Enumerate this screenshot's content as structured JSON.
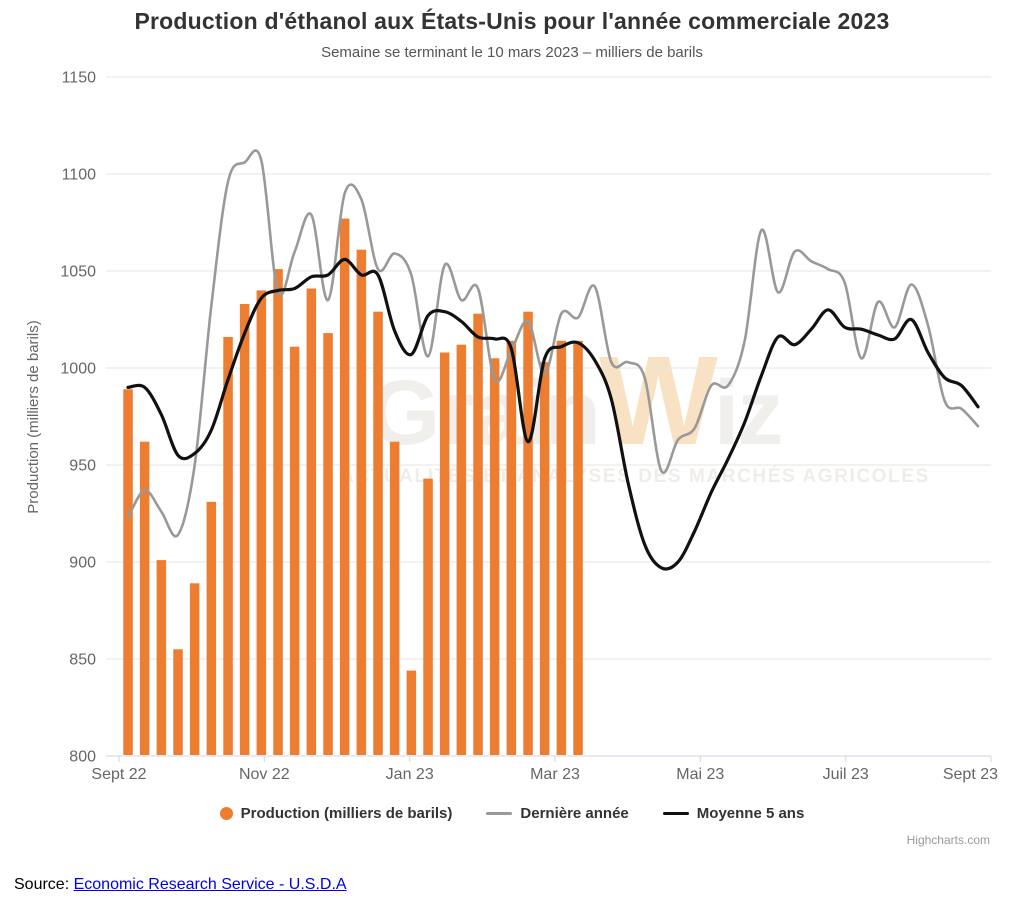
{
  "header": {
    "title": "Production d'éthanol aux États-Unis pour l'année commerciale 2023",
    "subtitle": "Semaine se terminant le 10 mars 2023 – milliers de barils"
  },
  "watermark": {
    "brand_prefix": "Grain",
    "brand_accent": "W",
    "brand_suffix": "iz",
    "tagline": "ACTUALITÉS ET ANALYSES DES MARCHÉS AGRICOLES"
  },
  "legend": {
    "production": "Production (milliers de barils)",
    "last_year": "Dernière année",
    "five_year_avg": "Moyenne 5 ans"
  },
  "credit": "Highcharts.com",
  "source": {
    "label": "Source:",
    "link_text": "Economic Research Service - U.S.D.A"
  },
  "colors": {
    "bar": "#ED7D31",
    "last_year_line": "#999999",
    "five_year_line": "#111111",
    "grid": "#e6e6e6",
    "axis_line": "#ccd6eb",
    "tick_text": "#666666",
    "title_text": "#333333",
    "link": "#0000EE",
    "credit_text": "#999999"
  },
  "chart_data": {
    "type": "combo column + spline",
    "title": "Production d'éthanol aux États-Unis pour l'année commerciale 2023",
    "subtitle": "Semaine se terminant le 10 mars 2023 – milliers de barils",
    "xlabel": "",
    "ylabel": "Production (milliers de barils)",
    "ylim": [
      800,
      1150
    ],
    "y_ticks": [
      800,
      850,
      900,
      950,
      1000,
      1050,
      1100,
      1150
    ],
    "x_tick_labels": [
      "Sept 22",
      "Nov 22",
      "Jan 23",
      "Mar 23",
      "Mai 23",
      "Juil 23",
      "Sept 23"
    ],
    "x_unit": "semaines (sept. 2022 – sept. 2023)",
    "weeks_total": 52,
    "grid": true,
    "legend_position": "bottom",
    "series": [
      {
        "name": "Production (milliers de barils)",
        "type": "column",
        "color": "#ED7D31",
        "values": [
          989,
          962,
          901,
          855,
          889,
          931,
          1016,
          1033,
          1040,
          1051,
          1011,
          1041,
          1018,
          1077,
          1061,
          1029,
          962,
          844,
          943,
          1008,
          1012,
          1028,
          1005,
          1014,
          1029,
          1003,
          1014,
          1014
        ]
      },
      {
        "name": "Dernière année",
        "type": "spline",
        "color": "#999999",
        "values": [
          923,
          937,
          926,
          914,
          950,
          1032,
          1096,
          1106,
          1107,
          1039,
          1060,
          1079,
          1035,
          1090,
          1087,
          1051,
          1059,
          1048,
          1006,
          1053,
          1035,
          1041,
          994,
          1009,
          1024,
          997,
          1028,
          1026,
          1042,
          1003,
          1003,
          995,
          947,
          963,
          969,
          991,
          991,
          1014,
          1071,
          1039,
          1060,
          1055,
          1051,
          1044,
          1005,
          1034,
          1021,
          1043,
          1022,
          983,
          979,
          970
        ]
      },
      {
        "name": "Moyenne 5 ans",
        "type": "spline",
        "color": "#111111",
        "values": [
          990,
          990,
          976,
          955,
          956,
          968,
          994,
          1018,
          1036,
          1040,
          1041,
          1047,
          1048,
          1056,
          1048,
          1048,
          1019,
          1007,
          1027,
          1029,
          1024,
          1016,
          1015,
          1010,
          962,
          1005,
          1011,
          1013,
          1004,
          984,
          941,
          909,
          897,
          900,
          916,
          936,
          953,
          972,
          996,
          1016,
          1012,
          1020,
          1030,
          1021,
          1020,
          1017,
          1015,
          1025,
          1008,
          995,
          991,
          980
        ]
      }
    ]
  }
}
